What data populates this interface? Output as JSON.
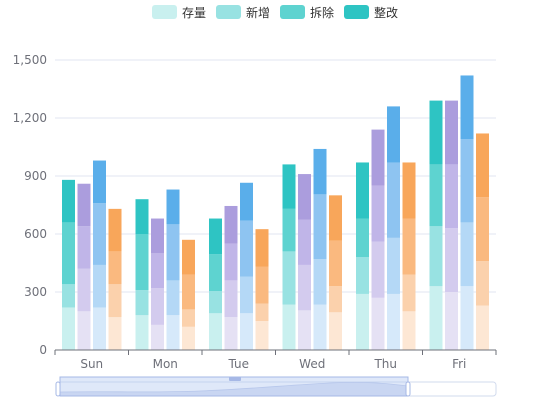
{
  "chart_data": {
    "type": "bar",
    "categories": [
      "Sun",
      "Mon",
      "Tue",
      "Wed",
      "Thu",
      "Fri"
    ],
    "y_ticks": [
      "0",
      "300",
      "600",
      "900",
      "1,200",
      "1,500"
    ],
    "ylim": [
      0,
      1500
    ],
    "grid": true,
    "legend_position": "top-center",
    "legend": [
      {
        "name": "存量",
        "color": "#c9f0ef"
      },
      {
        "name": "新增",
        "color": "#98e2e2"
      },
      {
        "name": "拆除",
        "color": "#5ed3d0"
      },
      {
        "name": "整改",
        "color": "#2ec4c3"
      }
    ],
    "stacks": [
      {
        "palette": [
          "#c9f0ef",
          "#98e2e2",
          "#5ed3d0",
          "#2ec4c3"
        ],
        "values": [
          [
            220,
            120,
            320,
            220
          ],
          [
            180,
            130,
            290,
            180
          ],
          [
            190,
            115,
            190,
            185
          ],
          [
            235,
            275,
            220,
            230
          ],
          [
            290,
            190,
            200,
            290
          ],
          [
            330,
            310,
            320,
            330
          ]
        ]
      },
      {
        "palette": [
          "#e5e1f4",
          "#d3cbee",
          "#c0b5e8",
          "#ab9ddd"
        ],
        "values": [
          [
            200,
            220,
            220,
            220
          ],
          [
            130,
            190,
            180,
            180
          ],
          [
            170,
            190,
            190,
            195
          ],
          [
            205,
            235,
            235,
            235
          ],
          [
            270,
            290,
            290,
            290
          ],
          [
            300,
            330,
            330,
            330
          ]
        ]
      },
      {
        "palette": [
          "#d6e9fa",
          "#b4d8f6",
          "#8ec4f1",
          "#5aaeea"
        ],
        "values": [
          [
            220,
            220,
            320,
            220
          ],
          [
            180,
            180,
            290,
            180
          ],
          [
            190,
            190,
            290,
            195
          ],
          [
            235,
            235,
            335,
            235
          ],
          [
            290,
            290,
            390,
            290
          ],
          [
            330,
            330,
            430,
            330
          ]
        ]
      },
      {
        "palette": [
          "#fde7d4",
          "#fbd1ac",
          "#fab97f",
          "#f8a65a"
        ],
        "values": [
          [
            170,
            170,
            170,
            220
          ],
          [
            120,
            90,
            180,
            180
          ],
          [
            150,
            90,
            190,
            195
          ],
          [
            195,
            135,
            235,
            235
          ],
          [
            200,
            190,
            290,
            290
          ],
          [
            230,
            230,
            330,
            330
          ]
        ]
      }
    ]
  }
}
